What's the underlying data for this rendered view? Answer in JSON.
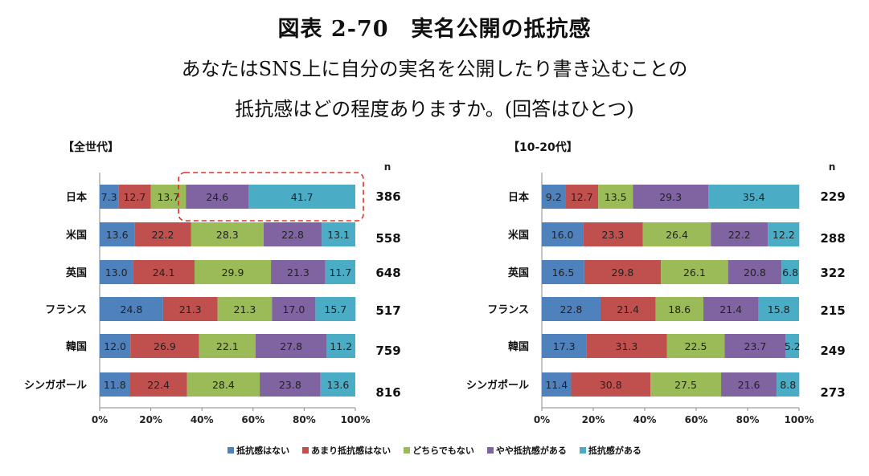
{
  "header": {
    "title": "図表 2-70　実名公開の抵抗感",
    "subtitle_line1": "あなたはSNS上に自分の実名を公開したり書き込むことの",
    "subtitle_line2": "抵抗感はどの程度ありますか。(回答はひとつ)"
  },
  "chart_data": [
    {
      "type": "bar",
      "orientation": "horizontal-stacked-100",
      "title": "【全世代】",
      "categories": [
        "日本",
        "米国",
        "英国",
        "フランス",
        "韓国",
        "シンガポール"
      ],
      "n_label": "n",
      "n": [
        386,
        558,
        648,
        517,
        759,
        816
      ],
      "series": [
        {
          "name": "抵抗感はない",
          "values": [
            7.3,
            13.6,
            13.0,
            24.8,
            12.0,
            11.8
          ]
        },
        {
          "name": "あまり抵抗感はない",
          "values": [
            12.7,
            22.2,
            24.1,
            21.3,
            26.9,
            22.4
          ]
        },
        {
          "name": "どちらでもない",
          "values": [
            13.7,
            28.3,
            29.9,
            21.3,
            22.1,
            28.4
          ]
        },
        {
          "name": "やや抵抗感がある",
          "values": [
            24.6,
            22.8,
            21.3,
            17.0,
            27.8,
            23.8
          ]
        },
        {
          "name": "抵抗感がある",
          "values": [
            41.7,
            13.1,
            11.7,
            15.7,
            11.2,
            13.6
          ]
        }
      ],
      "xlim": [
        0,
        100
      ],
      "xticks": [
        "0%",
        "20%",
        "40%",
        "60%",
        "80%",
        "100%"
      ],
      "highlight": {
        "category": "日本",
        "from_series": 3
      }
    },
    {
      "type": "bar",
      "orientation": "horizontal-stacked-100",
      "title": "【10-20代】",
      "categories": [
        "日本",
        "米国",
        "英国",
        "フランス",
        "韓国",
        "シンガポール"
      ],
      "n_label": "n",
      "n": [
        229,
        288,
        322,
        215,
        249,
        273
      ],
      "series": [
        {
          "name": "抵抗感はない",
          "values": [
            9.2,
            16.0,
            16.5,
            22.8,
            17.3,
            11.4
          ]
        },
        {
          "name": "あまり抵抗感はない",
          "values": [
            12.7,
            23.3,
            29.8,
            21.4,
            31.3,
            30.8
          ]
        },
        {
          "name": "どちらでもない",
          "values": [
            13.5,
            26.4,
            26.1,
            18.6,
            22.5,
            27.5
          ]
        },
        {
          "name": "やや抵抗感がある",
          "values": [
            29.3,
            22.2,
            20.8,
            21.4,
            23.7,
            21.6
          ]
        },
        {
          "name": "抵抗感がある",
          "values": [
            35.4,
            12.2,
            6.8,
            15.8,
            5.2,
            8.8
          ]
        }
      ],
      "xlim": [
        0,
        100
      ],
      "xticks": [
        "0%",
        "20%",
        "40%",
        "60%",
        "80%",
        "100%"
      ]
    }
  ],
  "colors": [
    "#4f81bd",
    "#c0504d",
    "#9bbb59",
    "#8064a2",
    "#4bacc6"
  ],
  "legend": [
    "抵抗感はない",
    "あまり抵抗感はない",
    "どちらでもない",
    "やや抵抗感がある",
    "抵抗感がある"
  ]
}
